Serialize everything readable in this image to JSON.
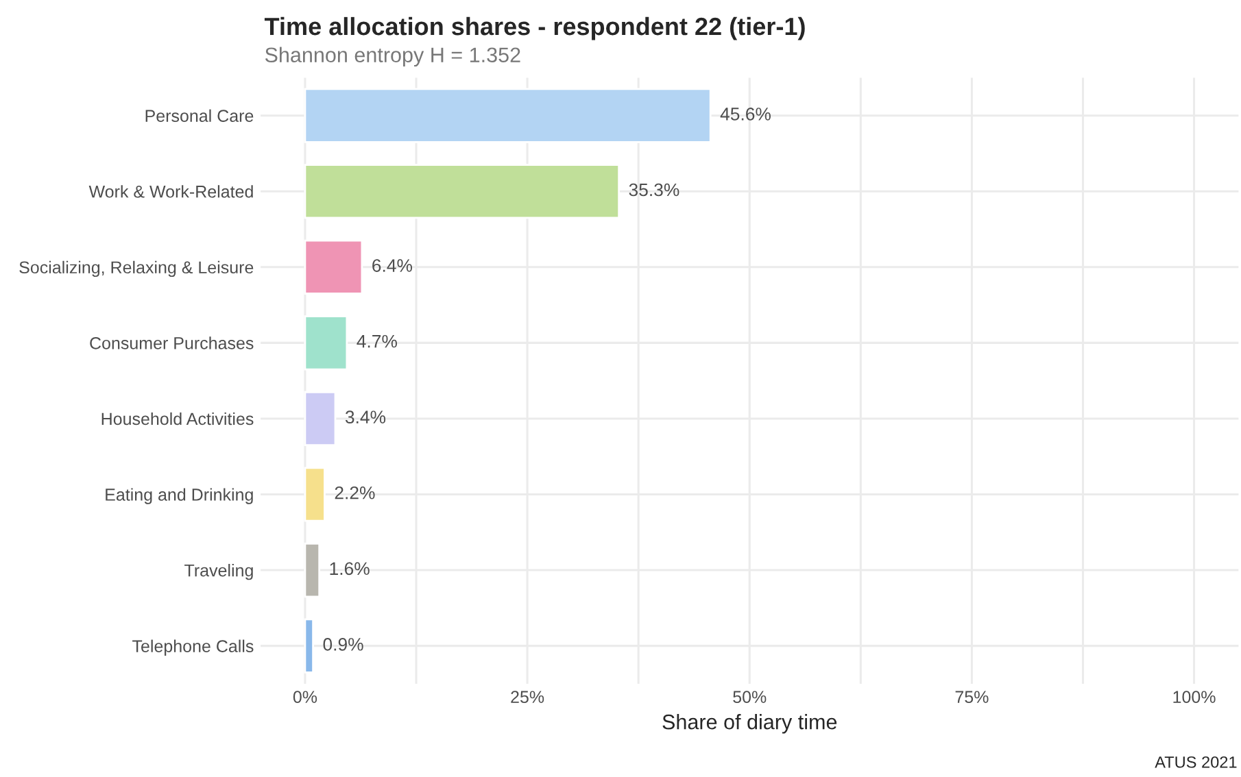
{
  "chart_data": {
    "type": "bar",
    "orientation": "horizontal",
    "title": "Time allocation shares - respondent 22 (tier-1)",
    "subtitle": "Shannon entropy H = 1.352",
    "xlabel": "Share of diary time",
    "annotations": [
      "ATUS 2021"
    ],
    "categories": [
      "Personal Care",
      "Work & Work-Related",
      "Socializing, Relaxing & Leisure",
      "Consumer Purchases",
      "Household Activities",
      "Eating and Drinking",
      "Traveling",
      "Telephone Calls"
    ],
    "values": [
      45.6,
      35.3,
      6.4,
      4.7,
      3.4,
      2.2,
      1.6,
      0.9
    ],
    "value_labels": [
      "45.6%",
      "35.3%",
      "6.4%",
      "4.7%",
      "3.4%",
      "2.2%",
      "1.6%",
      "0.9%"
    ],
    "colors": [
      "#b3d4f3",
      "#c0df99",
      "#ef94b4",
      "#9fe2cc",
      "#cccbf4",
      "#f6e08c",
      "#b8b6ae",
      "#89b8ea"
    ],
    "xlim": [
      -5,
      105
    ],
    "xticks": [
      {
        "value": 0,
        "label": "0%"
      },
      {
        "value": 12.5,
        "label": null
      },
      {
        "value": 25,
        "label": "25%"
      },
      {
        "value": 37.5,
        "label": null
      },
      {
        "value": 50,
        "label": "50%"
      },
      {
        "value": 62.5,
        "label": null
      },
      {
        "value": 75,
        "label": "75%"
      },
      {
        "value": 87.5,
        "label": null
      },
      {
        "value": 100,
        "label": "100%"
      }
    ],
    "grid": true,
    "legend": false
  }
}
